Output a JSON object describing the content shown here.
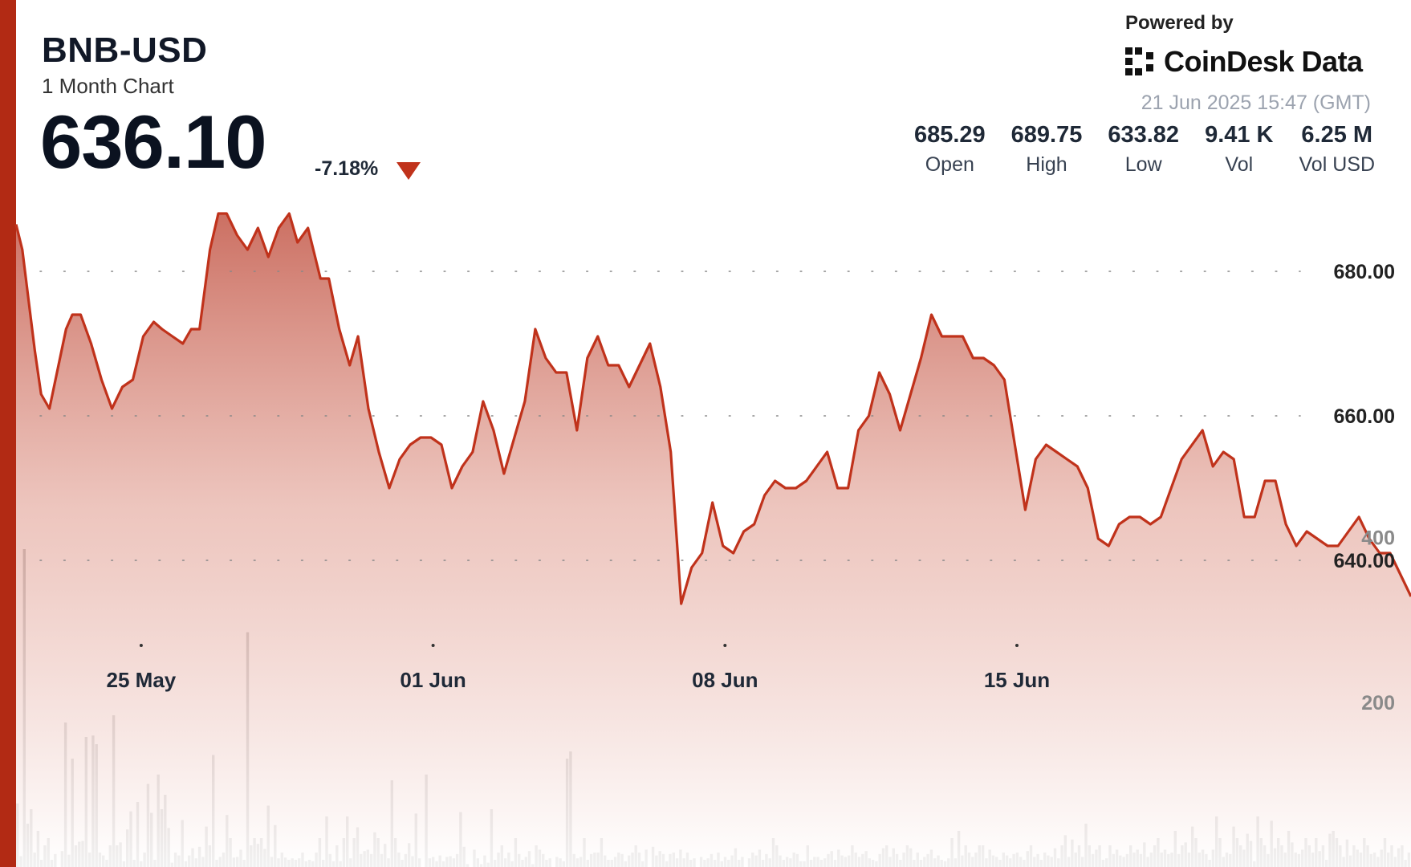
{
  "header": {
    "ticker": "BNB-USD",
    "period": "1 Month Chart",
    "price": "636.10",
    "change": "-7.18%",
    "direction_icon": "down-triangle-icon"
  },
  "branding": {
    "powered_by": "Powered by",
    "brand_name": "CoinDesk Data",
    "logo_icon": "coindesk-logo-icon"
  },
  "timestamp": "21 Jun 2025 15:47 (GMT)",
  "stats": [
    {
      "value": "685.29",
      "label": "Open"
    },
    {
      "value": "689.75",
      "label": "High"
    },
    {
      "value": "633.82",
      "label": "Low"
    },
    {
      "value": "9.41 K",
      "label": "Vol"
    },
    {
      "value": "6.25 M",
      "label": "Vol USD"
    }
  ],
  "colors": {
    "line": "#c0321b",
    "fill_top": "#c9685a",
    "volume_bar": "#6e6e6e",
    "edge_bar": "#b22a14"
  },
  "chart_data": {
    "type": "area",
    "price_series": {
      "x_range": [
        0,
        30
      ],
      "x_ticks": [
        {
          "x": 3,
          "label": "25 May"
        },
        {
          "x": 10,
          "label": "01 Jun"
        },
        {
          "x": 17,
          "label": "08 Jun"
        },
        {
          "x": 24,
          "label": "15 Jun"
        }
      ],
      "y_axis": {
        "ticks": [
          640,
          660,
          680
        ],
        "tick_labels": [
          "640.00",
          "660.00",
          "680.00"
        ],
        "range": [
          638,
          685
        ],
        "grid": "dotted"
      },
      "points": [
        [
          0.0,
          686.5
        ],
        [
          0.15,
          683
        ],
        [
          0.45,
          669
        ],
        [
          0.6,
          663
        ],
        [
          0.8,
          661
        ],
        [
          1.2,
          672
        ],
        [
          1.35,
          674
        ],
        [
          1.55,
          674
        ],
        [
          1.8,
          670
        ],
        [
          2.05,
          665
        ],
        [
          2.3,
          661
        ],
        [
          2.55,
          664
        ],
        [
          2.8,
          665
        ],
        [
          3.05,
          671
        ],
        [
          3.3,
          673
        ],
        [
          3.5,
          672
        ],
        [
          3.75,
          671
        ],
        [
          4.0,
          670
        ],
        [
          4.2,
          672
        ],
        [
          4.4,
          672
        ],
        [
          4.65,
          683
        ],
        [
          4.85,
          688
        ],
        [
          5.05,
          688
        ],
        [
          5.3,
          685
        ],
        [
          5.55,
          683
        ],
        [
          5.8,
          686
        ],
        [
          6.05,
          682
        ],
        [
          6.3,
          686
        ],
        [
          6.55,
          688
        ],
        [
          6.75,
          684
        ],
        [
          7.0,
          686
        ],
        [
          7.3,
          679
        ],
        [
          7.5,
          679
        ],
        [
          7.75,
          672
        ],
        [
          8.0,
          667
        ],
        [
          8.2,
          671
        ],
        [
          8.45,
          661
        ],
        [
          8.7,
          655
        ],
        [
          8.95,
          650
        ],
        [
          9.2,
          654
        ],
        [
          9.45,
          656
        ],
        [
          9.7,
          657
        ],
        [
          9.95,
          657
        ],
        [
          10.2,
          656
        ],
        [
          10.45,
          650
        ],
        [
          10.7,
          653
        ],
        [
          10.95,
          655
        ],
        [
          11.2,
          662
        ],
        [
          11.45,
          658
        ],
        [
          11.7,
          652
        ],
        [
          11.95,
          657
        ],
        [
          12.2,
          662
        ],
        [
          12.45,
          672
        ],
        [
          12.7,
          668
        ],
        [
          12.95,
          666
        ],
        [
          13.2,
          666
        ],
        [
          13.45,
          658
        ],
        [
          13.7,
          668
        ],
        [
          13.95,
          671
        ],
        [
          14.2,
          667
        ],
        [
          14.45,
          667
        ],
        [
          14.7,
          664
        ],
        [
          14.95,
          667
        ],
        [
          15.2,
          670
        ],
        [
          15.45,
          664
        ],
        [
          15.7,
          655
        ],
        [
          15.95,
          634
        ],
        [
          16.2,
          639
        ],
        [
          16.45,
          641
        ],
        [
          16.7,
          648
        ],
        [
          16.95,
          642
        ],
        [
          17.2,
          641
        ],
        [
          17.45,
          644
        ],
        [
          17.7,
          645
        ],
        [
          17.95,
          649
        ],
        [
          18.2,
          651
        ],
        [
          18.45,
          650
        ],
        [
          18.7,
          650
        ],
        [
          18.95,
          651
        ],
        [
          19.2,
          653
        ],
        [
          19.45,
          655
        ],
        [
          19.7,
          650
        ],
        [
          19.95,
          650
        ],
        [
          20.2,
          658
        ],
        [
          20.45,
          660
        ],
        [
          20.7,
          666
        ],
        [
          20.95,
          663
        ],
        [
          21.2,
          658
        ],
        [
          21.45,
          663
        ],
        [
          21.7,
          668
        ],
        [
          21.95,
          674
        ],
        [
          22.2,
          671
        ],
        [
          22.45,
          671
        ],
        [
          22.7,
          671
        ],
        [
          22.95,
          668
        ],
        [
          23.2,
          668
        ],
        [
          23.45,
          667
        ],
        [
          23.7,
          665
        ],
        [
          23.95,
          656
        ],
        [
          24.2,
          647
        ],
        [
          24.45,
          654
        ],
        [
          24.7,
          656
        ],
        [
          24.95,
          655
        ],
        [
          25.2,
          654
        ],
        [
          25.45,
          653
        ],
        [
          25.7,
          650
        ],
        [
          25.95,
          643
        ],
        [
          26.2,
          642
        ],
        [
          26.45,
          645
        ],
        [
          26.7,
          646
        ],
        [
          26.95,
          646
        ],
        [
          27.2,
          645
        ],
        [
          27.45,
          646
        ],
        [
          27.7,
          650
        ],
        [
          27.95,
          654
        ],
        [
          28.2,
          656
        ],
        [
          28.45,
          658
        ],
        [
          28.7,
          653
        ],
        [
          28.95,
          655
        ],
        [
          29.2,
          654
        ],
        [
          29.45,
          646
        ],
        [
          29.7,
          646
        ],
        [
          29.95,
          651
        ],
        [
          30.2,
          651
        ],
        [
          30.45,
          645
        ],
        [
          30.7,
          642
        ],
        [
          30.95,
          644
        ],
        [
          31.2,
          643
        ],
        [
          31.45,
          642
        ],
        [
          31.7,
          642
        ],
        [
          31.95,
          644
        ],
        [
          32.2,
          646
        ],
        [
          32.45,
          643
        ],
        [
          32.7,
          641
        ],
        [
          32.95,
          641
        ],
        [
          33.2,
          638
        ],
        [
          33.45,
          635
        ]
      ]
    },
    "volume_series": {
      "y_axis": {
        "ticks": [
          200,
          400
        ],
        "tick_labels": [
          "200",
          "400"
        ]
      },
      "values": [
        88,
        15,
        440,
        60,
        80,
        20,
        50,
        10,
        30,
        40,
        10,
        18,
        0,
        22,
        200,
        17,
        150,
        30,
        35,
        36,
        180,
        20,
        182,
        170,
        20,
        16,
        10,
        30,
        210,
        30,
        34,
        8,
        52,
        77,
        10,
        90,
        8,
        20,
        115,
        75,
        10,
        128,
        80,
        100,
        54,
        6,
        20,
        16,
        65,
        8,
        16,
        26,
        12,
        28,
        14,
        56,
        30,
        155,
        10,
        14,
        20,
        72,
        40,
        13,
        14,
        24,
        10,
        325,
        30,
        40,
        32,
        40,
        25,
        85,
        14,
        58,
        12,
        20,
        13,
        10,
        12,
        10,
        12,
        20,
        8,
        10,
        8,
        20,
        40,
        10,
        70,
        18,
        8,
        30,
        8,
        40,
        70,
        12,
        40,
        55,
        18,
        22,
        24,
        18,
        48,
        40,
        18,
        32,
        12,
        120,
        40,
        20,
        10,
        18,
        33,
        15,
        74,
        12,
        0,
        128,
        12,
        14,
        8,
        16,
        8,
        14,
        15,
        12,
        18,
        76,
        28,
        4,
        0,
        24,
        12,
        4,
        16,
        6,
        80,
        10,
        20,
        30,
        12,
        20,
        8,
        40,
        18,
        10,
        14,
        22,
        4,
        30,
        24,
        18,
        10,
        12,
        0,
        14,
        12,
        8,
        150,
        160,
        18,
        12,
        14,
        40,
        10,
        18,
        20,
        20,
        40,
        16,
        10,
        10,
        14,
        20,
        18,
        8,
        16,
        20,
        30,
        20,
        8,
        24,
        0,
        28,
        16,
        22,
        18,
        8,
        18,
        20,
        12,
        24,
        12,
        20,
        10,
        12,
        0,
        14,
        10,
        12,
        18,
        10,
        20,
        8,
        14,
        10,
        16,
        26,
        10,
        14,
        0,
        12,
        20,
        16,
        24,
        10,
        18,
        12,
        40,
        30,
        16,
        10,
        14,
        12,
        20,
        18,
        8,
        8,
        30,
        10,
        14,
        14,
        10,
        12,
        18,
        22,
        10,
        24,
        16,
        14,
        16,
        30,
        20,
        14,
        18,
        22,
        12,
        10,
        8,
        18,
        26,
        30,
        14,
        26,
        18,
        10,
        20,
        30,
        26,
        10,
        20,
        10,
        14,
        18,
        24,
        12,
        16,
        10,
        8,
        12,
        40,
        12,
        50,
        16,
        30,
        20,
        14,
        20,
        30,
        30,
        12,
        24,
        16,
        14,
        10,
        20,
        16,
        12,
        18,
        20,
        14,
        10,
        22,
        30,
        14,
        18,
        10,
        20,
        16,
        14,
        26,
        12,
        30,
        44,
        14,
        38,
        20,
        30,
        14,
        60,
        30,
        18,
        24,
        30,
        10,
        12,
        30,
        18,
        24,
        16,
        14,
        18,
        30,
        20,
        24,
        18,
        34,
        14,
        20,
        30,
        40,
        20,
        24,
        18,
        20,
        50,
        18,
        30,
        34,
        20,
        56,
        40,
        20,
        24,
        18,
        10,
        24,
        70,
        40,
        14,
        20,
        18,
        56,
        40,
        30,
        24,
        46,
        36,
        8,
        70,
        40,
        30,
        18,
        64,
        26,
        40,
        30,
        20,
        50,
        34,
        20,
        18,
        24,
        40,
        30,
        20,
        40,
        22,
        30,
        10,
        46,
        50,
        40,
        30,
        14,
        38,
        16,
        30,
        24,
        20,
        40,
        30,
        18,
        20,
        14,
        24,
        40,
        20,
        30,
        14,
        26,
        30,
        10,
        20
      ]
    }
  }
}
